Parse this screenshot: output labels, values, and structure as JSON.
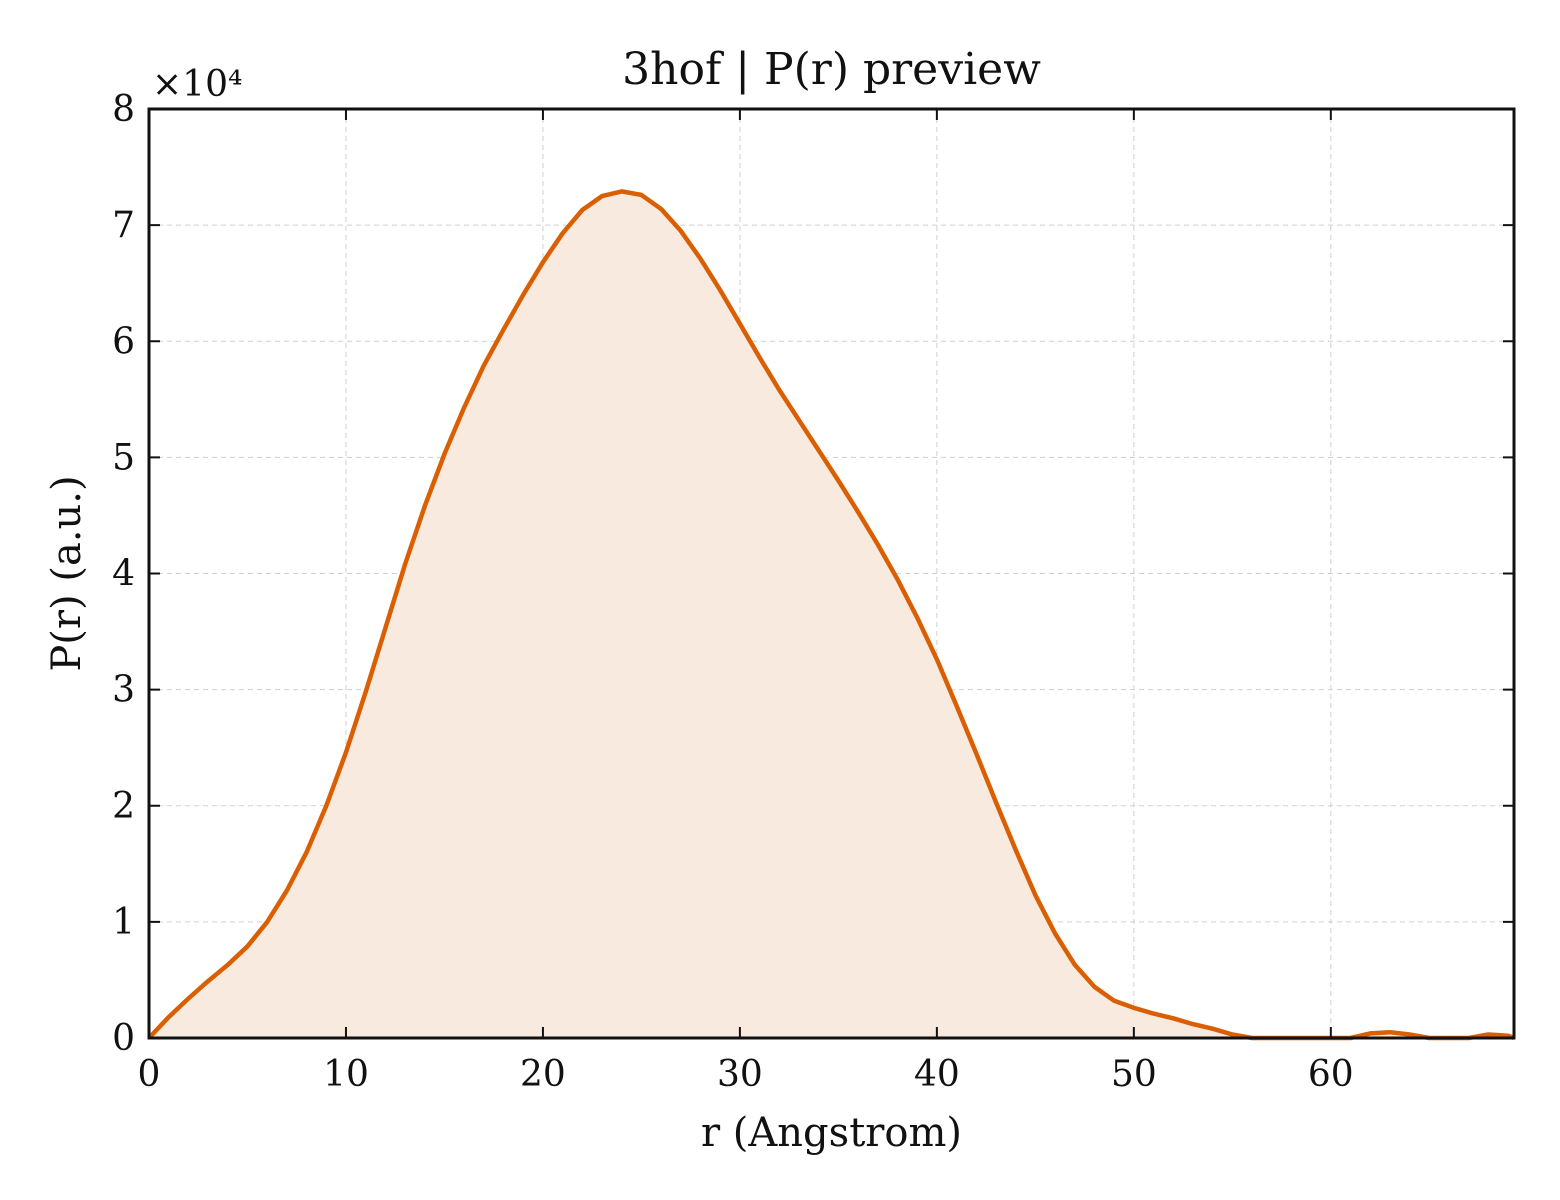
{
  "chart_data": {
    "type": "area",
    "title": "3hof | P(r) preview",
    "xlabel": "r (Angstrom)",
    "ylabel": "P(r) (a.u.)",
    "y_multiplier": "×10⁴",
    "xlim": [
      0,
      69.3
    ],
    "ylim": [
      0,
      80000
    ],
    "x_ticks": [
      0,
      10,
      20,
      30,
      40,
      50,
      60
    ],
    "y_ticks": [
      0,
      10000,
      20000,
      30000,
      40000,
      50000,
      60000,
      70000,
      80000
    ],
    "x_tick_labels": [
      "0",
      "10",
      "20",
      "30",
      "40",
      "50",
      "60"
    ],
    "y_tick_labels": [
      "0",
      "1",
      "2",
      "3",
      "4",
      "5",
      "6",
      "7",
      "8"
    ],
    "grid": true,
    "line_color": "#d95f02",
    "fill_color": "#f9eadf",
    "series": [
      {
        "x": [
          0,
          1,
          2,
          3,
          4,
          5,
          6,
          7,
          8,
          9,
          10,
          11,
          12,
          13,
          14,
          15,
          16,
          17,
          18,
          19,
          20,
          21,
          22,
          23,
          24,
          25,
          26,
          27,
          28,
          29,
          30,
          31,
          32,
          33,
          34,
          35,
          36,
          37,
          38,
          39,
          40,
          41,
          42,
          43,
          44,
          45,
          46,
          47,
          48,
          49,
          50,
          51,
          52,
          53,
          54,
          55,
          56,
          57,
          58,
          59,
          60,
          61,
          62,
          63,
          64,
          65,
          66,
          67,
          68,
          69,
          69.3
        ],
        "y": [
          0,
          1800,
          3400,
          4900,
          6300,
          7900,
          10000,
          12700,
          16000,
          20000,
          24600,
          29800,
          35300,
          40800,
          45800,
          50300,
          54300,
          57900,
          61000,
          64000,
          66800,
          69300,
          71300,
          72500,
          72900,
          72600,
          71400,
          69500,
          67100,
          64400,
          61500,
          58600,
          55800,
          53200,
          50600,
          48000,
          45300,
          42500,
          39500,
          36200,
          32600,
          28600,
          24500,
          20300,
          16200,
          12300,
          9000,
          6300,
          4400,
          3200,
          2600,
          2100,
          1700,
          1200,
          800,
          300,
          0,
          0,
          0,
          0,
          0,
          0,
          400,
          500,
          300,
          0,
          0,
          0,
          300,
          200,
          0
        ]
      }
    ]
  }
}
